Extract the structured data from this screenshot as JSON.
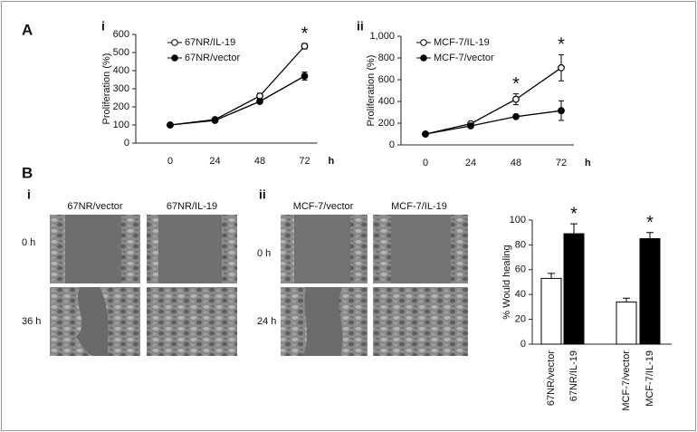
{
  "labels": {
    "A": "A",
    "A_i": "i",
    "A_ii": "ii",
    "B": "B",
    "B_i": "i",
    "B_ii": "ii"
  },
  "micrographs": {
    "left": {
      "columns": [
        "67NR/vector",
        "67NR/IL-19"
      ],
      "rows": [
        "0 h",
        "36 h"
      ]
    },
    "right": {
      "columns": [
        "MCF-7/vector",
        "MCF-7/IL-19"
      ],
      "rows": [
        "0 h",
        "24 h"
      ]
    }
  },
  "chart_data": [
    {
      "type": "line",
      "y_label": "Proliferation (%)",
      "x_label": "h",
      "categories": [
        "0",
        "24",
        "48",
        "72"
      ],
      "ylim": [
        0,
        600
      ],
      "yticks": [
        0,
        100,
        200,
        300,
        400,
        500,
        600
      ],
      "legend": "upper left",
      "series": [
        {
          "name": "67NR/IL-19",
          "color": "#000000",
          "fill": "#ffffff",
          "values": [
            100,
            130,
            260,
            535
          ],
          "errors": [
            8,
            8,
            15,
            15
          ]
        },
        {
          "name": "67NR/vector",
          "color": "#000000",
          "fill": "#000000",
          "values": [
            100,
            125,
            230,
            370
          ],
          "errors": [
            5,
            8,
            10,
            22
          ]
        }
      ],
      "annotations": [
        {
          "text": "*",
          "category": "72"
        }
      ]
    },
    {
      "type": "line",
      "y_label": "Proliferation (%)",
      "x_label": "h",
      "categories": [
        "0",
        "24",
        "48",
        "72"
      ],
      "ylim": [
        0,
        1000
      ],
      "yticks": [
        0,
        200,
        400,
        600,
        800,
        {
          "value": 1000,
          "label": "1,000"
        }
      ],
      "legend": "upper left",
      "series": [
        {
          "name": "MCF-7/IL-19",
          "color": "#000000",
          "fill": "#ffffff",
          "values": [
            100,
            195,
            420,
            710
          ],
          "errors": [
            5,
            15,
            50,
            120
          ]
        },
        {
          "name": "MCF-7/vector",
          "color": "#000000",
          "fill": "#000000",
          "values": [
            100,
            175,
            260,
            315
          ],
          "errors": [
            5,
            10,
            15,
            90
          ]
        }
      ],
      "annotations": [
        {
          "text": "*",
          "category": "48"
        },
        {
          "text": "*",
          "category": "72"
        }
      ]
    },
    {
      "type": "bar",
      "y_label": "% Would healing",
      "categories": [
        "67NR/vector",
        "67NR/IL-19",
        "MCF-7/vector",
        "MCF-7/IL-19"
      ],
      "values": [
        53,
        89,
        34,
        85
      ],
      "errors": [
        4,
        8,
        3,
        5
      ],
      "colors": [
        "#ffffff",
        "#000000",
        "#ffffff",
        "#000000"
      ],
      "ylim": [
        0,
        100
      ],
      "yticks": [
        0,
        20,
        40,
        60,
        80,
        100
      ],
      "annotations": [
        {
          "text": "*",
          "category": "67NR/IL-19"
        },
        {
          "text": "*",
          "category": "MCF-7/IL-19"
        }
      ]
    }
  ]
}
